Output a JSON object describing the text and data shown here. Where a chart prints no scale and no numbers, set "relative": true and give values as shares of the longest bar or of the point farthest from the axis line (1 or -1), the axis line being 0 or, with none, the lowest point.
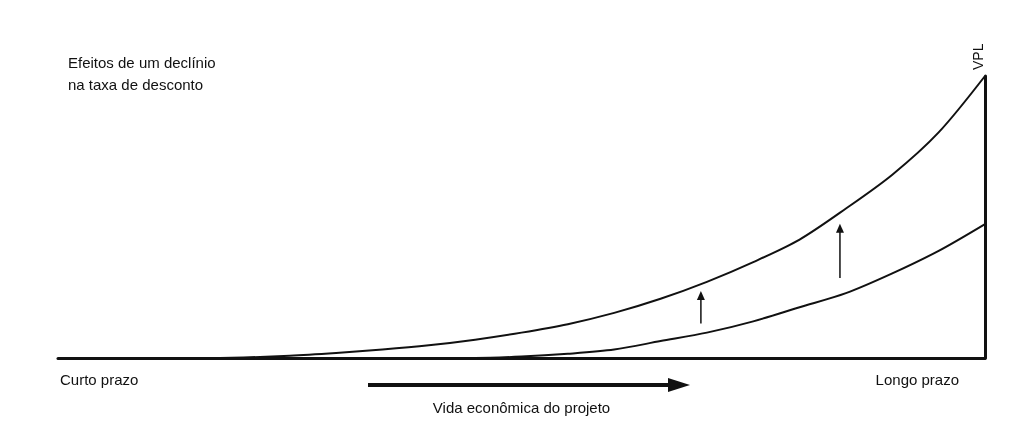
{
  "chart_data": {
    "type": "line",
    "relative": true,
    "title": "Efeitos de um declínio\nna taxa de desconto",
    "xlabel": "Vida econômica do projeto",
    "ylabel": "VPL",
    "categories": [
      null,
      null,
      null,
      null,
      null,
      null,
      null,
      null,
      null,
      null,
      null,
      null,
      null,
      null,
      null,
      null,
      null,
      null,
      null,
      null,
      null
    ],
    "series": [
      {
        "color": "#111111",
        "values": [
          0,
          0,
          0,
          0,
          0.002,
          0.008,
          0.018,
          0.03,
          0.045,
          0.065,
          0.09,
          0.12,
          0.16,
          0.21,
          0.27,
          0.34,
          0.42,
          0.53,
          0.65,
          0.8,
          1
        ]
      },
      {
        "color": "#111111",
        "values": [
          0,
          0,
          0,
          0,
          0,
          0,
          0,
          0,
          0,
          0,
          0.005,
          0.015,
          0.03,
          0.06,
          0.09,
          0.13,
          0.18,
          0.23,
          0.3,
          0.38,
          0.475
        ]
      }
    ],
    "annotations": [
      "Curto prazo",
      "Longo prazo"
    ],
    "marker": "none",
    "line_style": "solid",
    "grid": false
  }
}
